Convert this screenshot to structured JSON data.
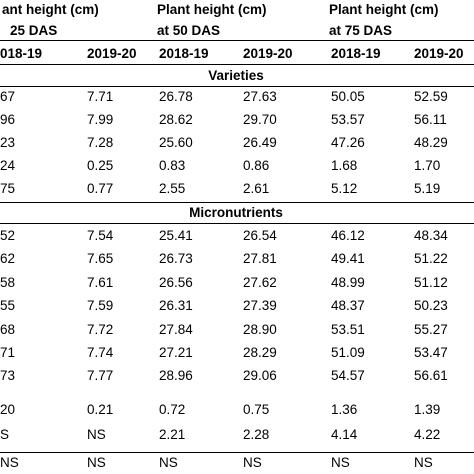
{
  "headers": {
    "col1_line1": "ant height (cm)",
    "col1_line2": "25 DAS",
    "col2_line1": "Plant height (cm)",
    "col2_line2": "at 50 DAS",
    "col3_line1": "Plant height (cm)",
    "col3_line2": "at 75 DAS"
  },
  "years": [
    "018-19",
    "2019-20",
    "2018-19",
    "2019-20",
    "2018-19",
    "2019-20"
  ],
  "sections": {
    "varieties": "Varieties",
    "micronutrients": "Micronutrients"
  },
  "varieties_rows": [
    [
      "67",
      "7.71",
      "26.78",
      "27.63",
      "50.05",
      "52.59"
    ],
    [
      "96",
      "7.99",
      "28.62",
      "29.70",
      "53.57",
      "56.11"
    ],
    [
      "23",
      "7.28",
      "25.60",
      "26.49",
      "47.26",
      "48.29"
    ],
    [
      "24",
      "0.25",
      "0.83",
      "0.86",
      "1.68",
      "1.70"
    ],
    [
      "75",
      "0.77",
      "2.55",
      "2.61",
      "5.12",
      "5.19"
    ]
  ],
  "micronutrient_rows": [
    [
      "52",
      "7.54",
      "25.41",
      "26.54",
      "46.12",
      "48.34"
    ],
    [
      "62",
      "7.65",
      "26.73",
      "27.81",
      "49.41",
      "51.22"
    ],
    [
      "58",
      "7.61",
      "26.56",
      "27.62",
      "48.99",
      "51.12"
    ],
    [
      "55",
      "7.59",
      "26.31",
      "27.39",
      "48.37",
      "50.23"
    ],
    [
      "68",
      "7.72",
      "27.84",
      "28.90",
      "53.51",
      "55.27"
    ],
    [
      "71",
      "7.74",
      "27.21",
      "28.29",
      "51.09",
      "53.47"
    ],
    [
      "73",
      "7.77",
      "28.96",
      "29.06",
      "54.57",
      "56.61"
    ]
  ],
  "stat_rows": [
    [
      "20",
      "0.21",
      "0.72",
      "0.75",
      "1.36",
      "1.39"
    ],
    [
      "S",
      "NS",
      "2.21",
      "2.28",
      "4.14",
      "4.22"
    ],
    [
      "NS",
      "NS",
      "NS",
      "NS",
      "NS",
      "NS"
    ]
  ]
}
